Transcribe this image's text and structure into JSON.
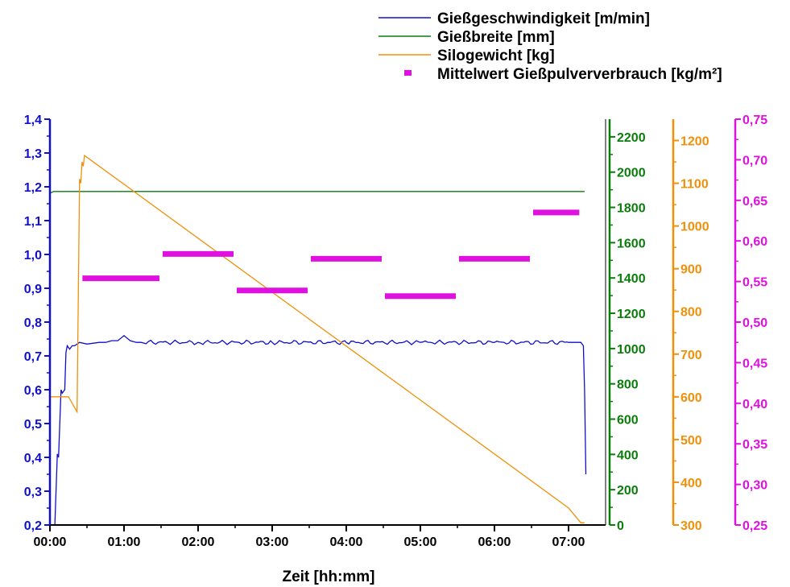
{
  "chart_data": {
    "type": "line",
    "title": "",
    "xlabel": "Zeit [hh:mm]",
    "x_ticks": [
      "00:00",
      "01:00",
      "02:00",
      "03:00",
      "04:00",
      "05:00",
      "06:00",
      "07:00"
    ],
    "xlim": [
      "00:00",
      "07:30"
    ],
    "legend_position": "top-right",
    "grid": false,
    "axes": {
      "speed": {
        "ylim": [
          0.2,
          1.4
        ],
        "ticks": [
          "0,2",
          "0,3",
          "0,4",
          "0,5",
          "0,6",
          "0,7",
          "0,8",
          "0,9",
          "1,0",
          "1,1",
          "1,2",
          "1,3",
          "1,4"
        ],
        "color": "#1010c8",
        "side": "left"
      },
      "width": {
        "ylim": [
          0,
          2300
        ],
        "ticks": [
          "0",
          "200",
          "400",
          "600",
          "800",
          "1000",
          "1200",
          "1400",
          "1600",
          "1800",
          "2000",
          "2200"
        ],
        "color": "#0a7d0a",
        "side": "right"
      },
      "silo": {
        "ylim": [
          300,
          1250
        ],
        "ticks": [
          "300",
          "400",
          "500",
          "600",
          "700",
          "800",
          "900",
          "1000",
          "1100",
          "1200"
        ],
        "color": "#f0900a",
        "side": "right"
      },
      "powder": {
        "ylim": [
          0.25,
          0.75
        ],
        "ticks": [
          "0,25",
          "0,30",
          "0,35",
          "0,40",
          "0,45",
          "0,50",
          "0,55",
          "0,60",
          "0,65",
          "0,70",
          "0,75"
        ],
        "color": "#e010e0",
        "side": "right"
      }
    },
    "series": [
      {
        "name": "Gießgeschwindigkeit [m/min]",
        "axis": "speed",
        "style": "line",
        "color": "#1010c8",
        "x": [
          "00:00",
          "00:04",
          "00:06",
          "00:07",
          "00:09",
          "00:10",
          "00:12",
          "00:13",
          "00:14",
          "00:16",
          "00:18",
          "00:20",
          "00:24",
          "00:30",
          "00:40",
          "00:45",
          "00:50",
          "00:55",
          "01:00",
          "01:05",
          "01:10",
          "02:00",
          "03:00",
          "04:00",
          "05:00",
          "06:00",
          "07:00",
          "07:10",
          "07:12",
          "07:13",
          "07:14"
        ],
        "y": [
          0.2,
          0.2,
          0.41,
          0.4,
          0.6,
          0.59,
          0.6,
          0.71,
          0.73,
          0.72,
          0.73,
          0.73,
          0.74,
          0.735,
          0.74,
          0.74,
          0.745,
          0.745,
          0.76,
          0.745,
          0.74,
          0.74,
          0.74,
          0.74,
          0.74,
          0.74,
          0.74,
          0.74,
          0.73,
          0.6,
          0.35
        ]
      },
      {
        "name": "Gießbreite [mm]",
        "axis": "width",
        "style": "line",
        "color": "#0a7d0a",
        "x": [
          "00:00",
          "00:03",
          "07:13"
        ],
        "y": [
          1880,
          1890,
          1890
        ]
      },
      {
        "name": "Silogewicht [kg]",
        "axis": "silo",
        "style": "line",
        "color": "#f0900a",
        "x": [
          "00:00",
          "00:15",
          "00:22",
          "00:24",
          "00:25",
          "00:26",
          "00:27",
          "00:28",
          "07:00",
          "07:10",
          "07:13"
        ],
        "y": [
          600,
          600,
          565,
          1110,
          1100,
          1150,
          1140,
          1165,
          340,
          305,
          305
        ]
      },
      {
        "name": "Mittelwert Gießpulververbrauch [kg/m²]",
        "axis": "powder",
        "style": "segments",
        "color": "#e010e0",
        "segments": [
          {
            "from": "00:25",
            "to": "01:30",
            "value": 0.554
          },
          {
            "from": "01:30",
            "to": "02:30",
            "value": 0.584
          },
          {
            "from": "02:30",
            "to": "03:30",
            "value": 0.539
          },
          {
            "from": "03:30",
            "to": "04:30",
            "value": 0.578
          },
          {
            "from": "04:30",
            "to": "05:30",
            "value": 0.532
          },
          {
            "from": "05:30",
            "to": "06:30",
            "value": 0.578
          },
          {
            "from": "06:30",
            "to": "07:10",
            "value": 0.635
          }
        ]
      }
    ]
  }
}
